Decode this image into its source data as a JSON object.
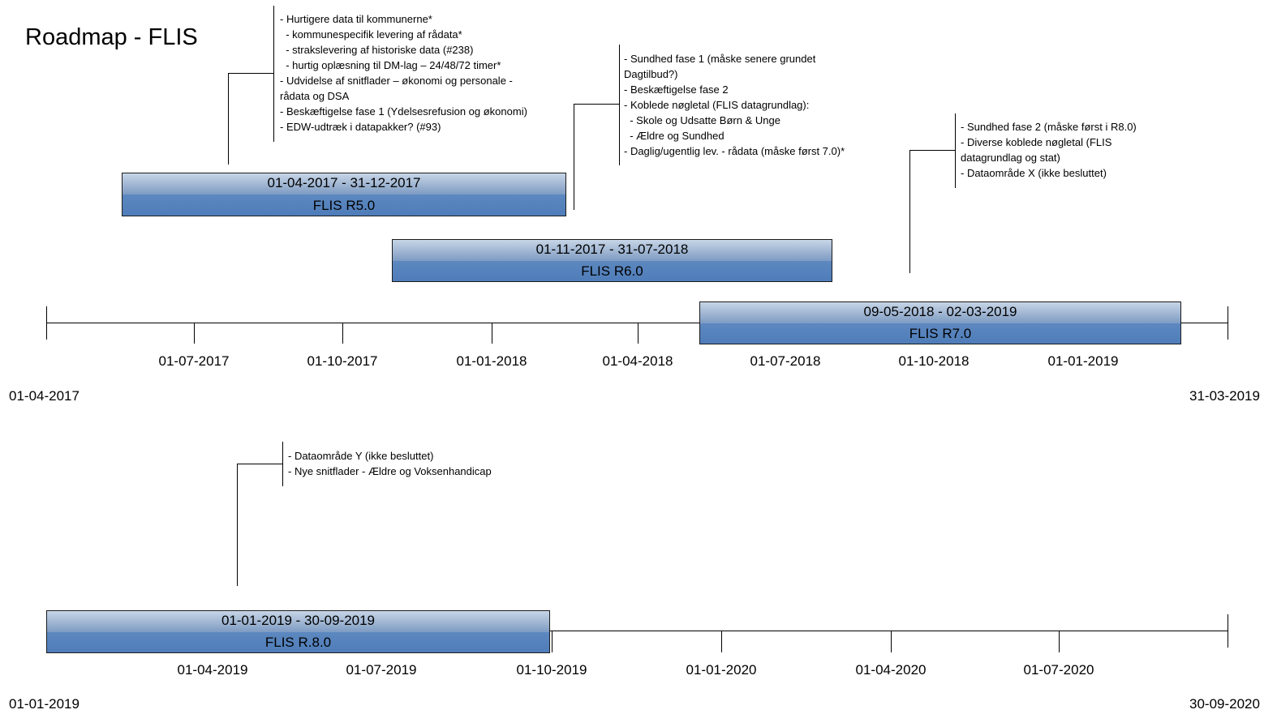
{
  "title": "Roadmap - FLIS",
  "timeline1": {
    "start_label": "01-04-2017",
    "end_label": "31-03-2019",
    "ticks": [
      "01-07-2017",
      "01-10-2017",
      "01-01-2018",
      "01-04-2018",
      "01-07-2018",
      "01-10-2018",
      "01-01-2019"
    ],
    "bars": [
      {
        "dates": "01-04-2017 - 31-12-2017",
        "name": "FLIS R5.0"
      },
      {
        "dates": "01-11-2017 - 31-07-2018",
        "name": "FLIS R6.0"
      },
      {
        "dates": "09-05-2018 - 02-03-2019",
        "name": "FLIS R7.0"
      }
    ],
    "notes": [
      [
        "- Hurtigere data til kommunerne*",
        "  - kommunespecifik levering af rådata*",
        "  - strakslevering af historiske data (#238)",
        "  - hurtig oplæsning til DM-lag – 24/48/72 timer*",
        "- Udvidelse af snitflader – økonomi og personale -",
        "rådata og DSA",
        "- Beskæftigelse fase 1 (Ydelsesrefusion og økonomi)",
        "- EDW-udtræk i datapakker? (#93)"
      ],
      [
        "- Sundhed fase 1 (måske senere grundet",
        "Dagtilbud?)",
        "- Beskæftigelse fase 2",
        "- Koblede nøgletal (FLIS datagrundlag):",
        "  - Skole og Udsatte Børn & Unge",
        "  - Ældre og Sundhed",
        "- Daglig/ugentlig lev. - rådata (måske først 7.0)*"
      ],
      [
        "- Sundhed fase 2 (måske først i R8.0)",
        "- Diverse koblede nøgletal (FLIS",
        "datagrundlag og stat)",
        "- Dataområde X (ikke besluttet)"
      ]
    ]
  },
  "timeline2": {
    "start_label": "01-01-2019",
    "end_label": "30-09-2020",
    "ticks": [
      "01-04-2019",
      "01-07-2019",
      "01-10-2019",
      "01-01-2020",
      "01-04-2020",
      "01-07-2020"
    ],
    "bars": [
      {
        "dates": "01-01-2019 - 30-09-2019",
        "name": "FLIS R.8.0"
      }
    ],
    "notes": [
      [
        "- Dataområde Y (ikke besluttet)",
        "- Nye snitflader - Ældre og Voksenhandicap"
      ]
    ]
  }
}
